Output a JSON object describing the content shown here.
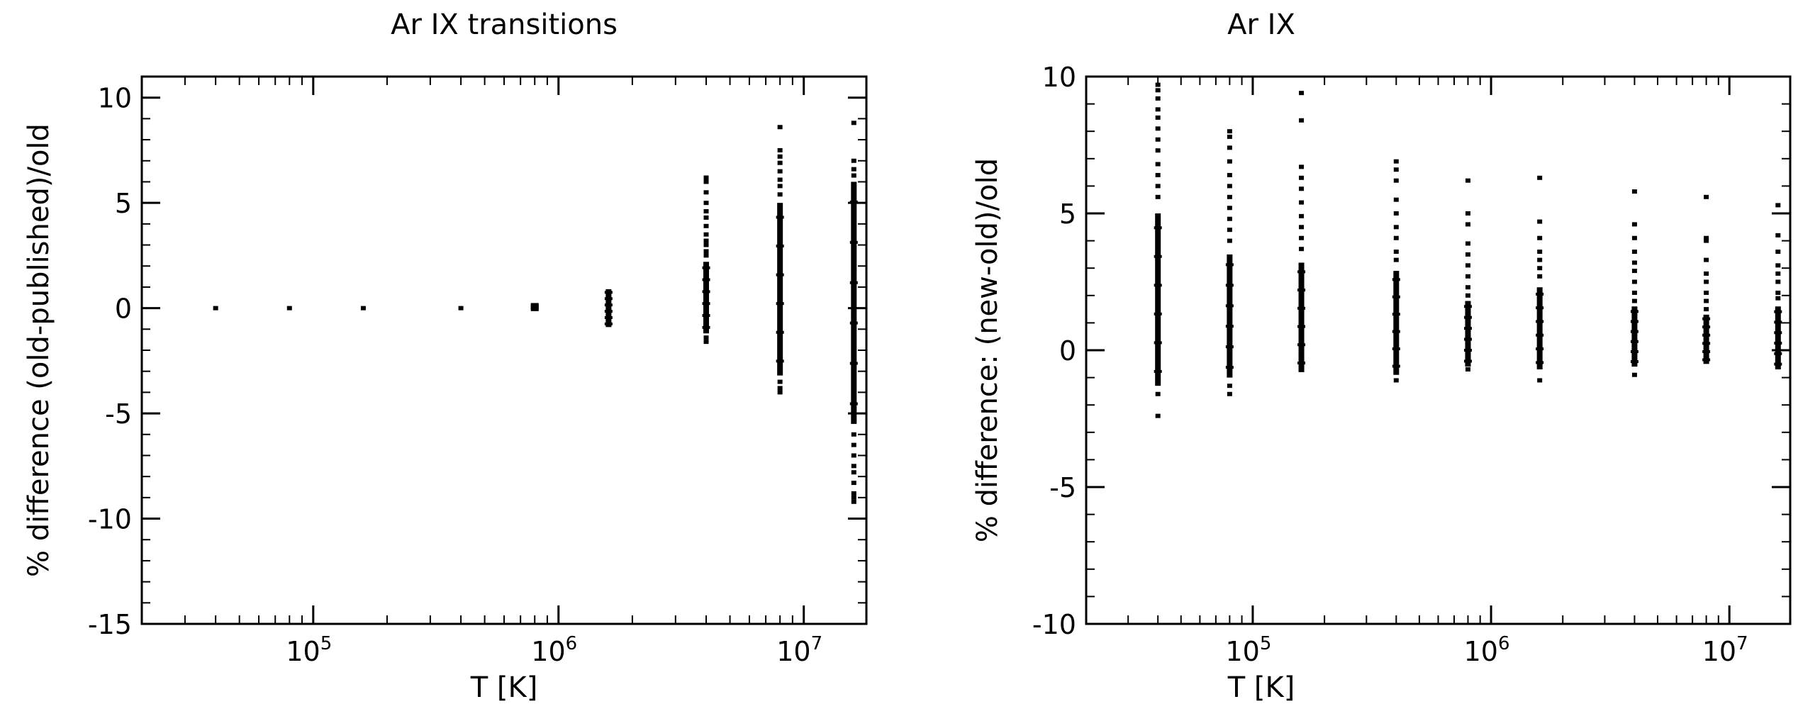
{
  "chart_data": [
    {
      "type": "scatter",
      "title": "Ar IX transitions",
      "xlabel": "T [K]",
      "ylabel": "% difference (old-published)/old",
      "xscale": "log",
      "xlim": [
        20000,
        18000000
      ],
      "ylim": [
        -15,
        11
      ],
      "grid": false,
      "xticks": [
        {
          "value": 100000,
          "base": "10",
          "exp": "5"
        },
        {
          "value": 1000000,
          "base": "10",
          "exp": "6"
        },
        {
          "value": 10000000,
          "base": "10",
          "exp": "7"
        }
      ],
      "yticks": [
        {
          "value": 10,
          "label": "10"
        },
        {
          "value": 5,
          "label": "5"
        },
        {
          "value": 0,
          "label": "0"
        },
        {
          "value": -5,
          "label": "-5"
        },
        {
          "value": -10,
          "label": "-10"
        },
        {
          "value": -15,
          "label": "-15"
        }
      ],
      "columns": [
        {
          "x": 40000,
          "min": 0.0,
          "max": 0.0,
          "dense_min": 0.0,
          "dense_max": 0.0,
          "outliers": []
        },
        {
          "x": 80000,
          "min": 0.0,
          "max": 0.0,
          "dense_min": 0.0,
          "dense_max": 0.0,
          "outliers": []
        },
        {
          "x": 160000,
          "min": 0.0,
          "max": 0.0,
          "dense_min": 0.0,
          "dense_max": 0.0,
          "outliers": []
        },
        {
          "x": 400000,
          "min": 0.0,
          "max": 0.0,
          "dense_min": 0.0,
          "dense_max": 0.0,
          "outliers": []
        },
        {
          "x": 800000,
          "min": -0.1,
          "max": 0.2,
          "dense_min": -0.1,
          "dense_max": 0.2,
          "outliers": []
        },
        {
          "x": 1600000,
          "min": -1.0,
          "max": 1.0,
          "dense_min": -0.9,
          "dense_max": 0.9,
          "outliers": []
        },
        {
          "x": 4000000,
          "min": -1.6,
          "max": 6.2,
          "dense_min": -1.2,
          "dense_max": 2.2,
          "outliers": [
            6.2,
            6.0,
            5.5,
            5.0,
            4.6,
            4.3,
            3.9,
            3.5,
            3.2,
            3.0,
            2.7,
            2.5,
            -1.4,
            -1.6
          ]
        },
        {
          "x": 8000000,
          "min": -4.0,
          "max": 8.6,
          "dense_min": -3.2,
          "dense_max": 5.0,
          "outliers": [
            8.6,
            7.5,
            7.2,
            6.9,
            6.5,
            6.1,
            5.8,
            5.4,
            -3.5,
            -3.8,
            -4.0
          ]
        },
        {
          "x": 16000000,
          "min": -9.2,
          "max": 8.8,
          "dense_min": -5.5,
          "dense_max": 6.0,
          "outliers": [
            8.8,
            7.0,
            6.6,
            6.3,
            -6.0,
            -6.5,
            -7.0,
            -7.5,
            -7.8,
            -8.3,
            -8.8,
            -9.0,
            -9.2
          ]
        }
      ]
    },
    {
      "type": "scatter",
      "title": "Ar IX",
      "xlabel": "T [K]",
      "ylabel": "% difference: (new-old)/old",
      "xscale": "log",
      "xlim": [
        20000,
        18000000
      ],
      "ylim": [
        -10,
        10
      ],
      "grid": false,
      "xticks": [
        {
          "value": 100000,
          "base": "10",
          "exp": "5"
        },
        {
          "value": 1000000,
          "base": "10",
          "exp": "6"
        },
        {
          "value": 10000000,
          "base": "10",
          "exp": "7"
        }
      ],
      "yticks": [
        {
          "value": 10,
          "label": "10"
        },
        {
          "value": 5,
          "label": "5"
        },
        {
          "value": 0,
          "label": "0"
        },
        {
          "value": -5,
          "label": "-5"
        },
        {
          "value": -10,
          "label": "-10"
        }
      ],
      "columns": [
        {
          "x": 40000,
          "min": -2.4,
          "max": 9.7,
          "dense_min": -1.3,
          "dense_max": 5.0,
          "outliers": [
            9.7,
            9.5,
            9.2,
            8.8,
            8.5,
            8.1,
            7.7,
            7.3,
            6.8,
            6.4,
            6.0,
            5.6,
            -1.6,
            -2.4
          ]
        },
        {
          "x": 80000,
          "min": -1.6,
          "max": 8.0,
          "dense_min": -1.0,
          "dense_max": 3.5,
          "outliers": [
            8.0,
            7.8,
            7.4,
            6.9,
            6.4,
            6.0,
            5.6,
            5.2,
            4.8,
            4.4,
            4.0,
            -1.3,
            -1.6
          ]
        },
        {
          "x": 160000,
          "min": -0.8,
          "max": 9.4,
          "dense_min": -0.8,
          "dense_max": 3.2,
          "outliers": [
            9.4,
            8.4,
            6.7,
            6.3,
            5.9,
            5.4,
            4.9,
            4.5,
            4.1,
            3.7
          ]
        },
        {
          "x": 400000,
          "min": -1.1,
          "max": 6.9,
          "dense_min": -0.9,
          "dense_max": 2.9,
          "outliers": [
            6.9,
            6.6,
            6.2,
            5.5,
            5.0,
            4.5,
            4.1,
            3.6,
            3.3,
            -1.1
          ]
        },
        {
          "x": 800000,
          "min": -0.7,
          "max": 6.2,
          "dense_min": -0.6,
          "dense_max": 1.8,
          "outliers": [
            6.2,
            5.0,
            4.6,
            3.9,
            3.5,
            3.1,
            2.7,
            2.3,
            2.0,
            -0.7
          ]
        },
        {
          "x": 1600000,
          "min": -1.1,
          "max": 6.3,
          "dense_min": -0.7,
          "dense_max": 2.3,
          "outliers": [
            6.3,
            4.7,
            4.1,
            3.6,
            3.3,
            3.0,
            2.7,
            -1.1
          ]
        },
        {
          "x": 4000000,
          "min": -0.9,
          "max": 5.8,
          "dense_min": -0.6,
          "dense_max": 1.6,
          "outliers": [
            5.8,
            4.6,
            4.1,
            3.6,
            3.2,
            2.9,
            2.5,
            2.1,
            1.8,
            -0.9
          ]
        },
        {
          "x": 8000000,
          "min": -0.6,
          "max": 5.6,
          "dense_min": -0.5,
          "dense_max": 1.3,
          "outliers": [
            5.6,
            4.1,
            4.0,
            3.3,
            2.8,
            2.5,
            2.1,
            1.8,
            1.5
          ]
        },
        {
          "x": 16000000,
          "min": -0.8,
          "max": 5.3,
          "dense_min": -0.7,
          "dense_max": 1.6,
          "outliers": [
            5.3,
            4.2,
            3.6,
            3.1,
            2.8,
            2.5,
            2.1,
            1.9
          ]
        }
      ]
    }
  ]
}
